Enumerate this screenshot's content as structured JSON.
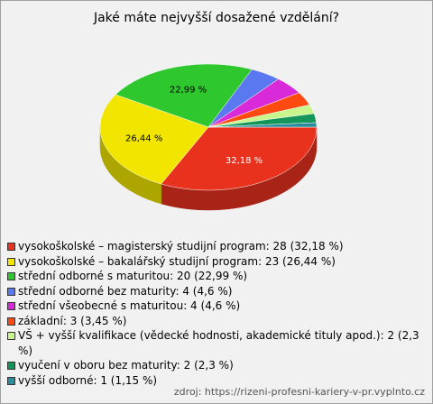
{
  "chart_data": {
    "type": "pie",
    "title": "Jaké máte nejvyšší dosažené vzdělání?",
    "categories": [
      "vysokoškolské – magisterský studijní program: 28 (32,18 %)",
      "vysokoškolské – bakalářský studijní program: 23 (26,44 %)",
      "střední odborné s maturitou: 20 (22,99 %)",
      "střední odborné bez maturity: 4 (4,6 %)",
      "střední všeobecné s maturitou: 4 (4,6 %)",
      "základní: 3 (3,45 %)",
      "VŠ + vyšší kvalifikace (vědecké hodnosti, akademické tituly apod.): 2 (2,3 %)",
      "vyučení v oboru bez maturity: 2 (2,3 %)",
      "vyšší odborné: 1 (1,15 %)"
    ],
    "values": [
      32.18,
      26.44,
      22.99,
      4.6,
      4.6,
      3.45,
      2.3,
      2.3,
      1.15
    ],
    "value_labels": [
      "32,18 %",
      "26,44 %",
      "22,99 %",
      null,
      null,
      null,
      null,
      null,
      null
    ],
    "colors": [
      "#e8321e",
      "#f2e600",
      "#2ec82e",
      "#5a78f0",
      "#d92ad9",
      "#ff4a12",
      "#c8f58c",
      "#14965a",
      "#2a8c9c"
    ],
    "source": "zdroj: https://rizeni-profesni-kariery-v-pr.vyplnto.cz"
  }
}
